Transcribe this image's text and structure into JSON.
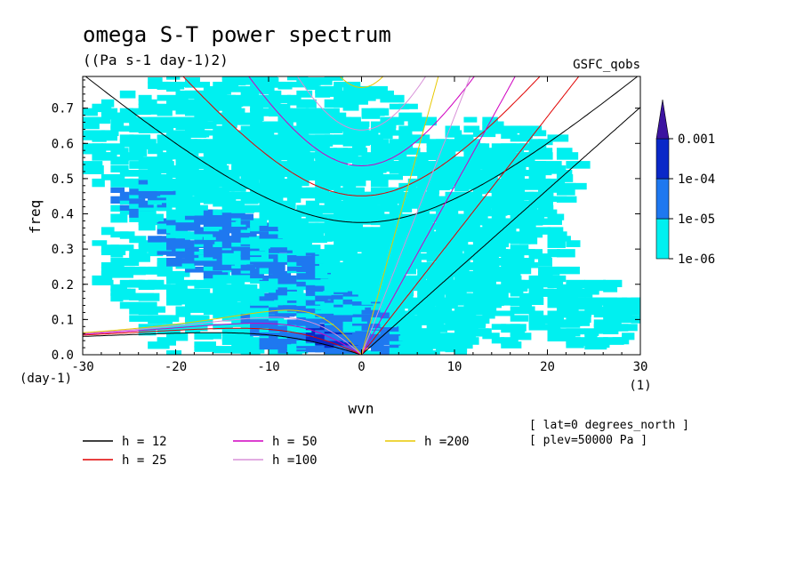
{
  "chart_data": {
    "type": "heatmap",
    "title": "omega S-T power spectrum",
    "subtitle": "((Pa s-1 day-1)2)",
    "dataset_label": "GSFC_qobs",
    "xlabel": "wvn",
    "ylabel": "freq",
    "x_unit_label": "(1)",
    "y_unit_label": "(day-1)",
    "xlim": [
      -30,
      30
    ],
    "ylim": [
      0,
      0.79
    ],
    "x_ticks": [
      -30,
      -20,
      -10,
      0,
      10,
      20,
      30
    ],
    "x_tick_labels": [
      "-30",
      "-20",
      "-10",
      "0",
      "10",
      "20",
      "30"
    ],
    "y_ticks": [
      0,
      0.1,
      0.2,
      0.3,
      0.4,
      0.5,
      0.6,
      0.7
    ],
    "y_tick_labels": [
      "0.0",
      "0.1",
      "0.2",
      "0.3",
      "0.4",
      "0.5",
      "0.6",
      "0.7"
    ],
    "colorbar": {
      "levels": [
        "1e-06",
        "1e-05",
        "1e-04",
        "0.001"
      ],
      "colors": [
        "#00f0f0",
        "#1e78f0",
        "#0a28c8",
        "#3c14a0"
      ]
    },
    "regions": [
      {
        "cls": 0,
        "cx": -3,
        "cy": 0.28,
        "rx": 26,
        "ry": 0.38
      },
      {
        "cls": 0,
        "cx": -12,
        "cy": 0.6,
        "rx": 20,
        "ry": 0.22
      },
      {
        "cls": 0,
        "cx": 6,
        "cy": 0.2,
        "rx": 10,
        "ry": 0.22
      },
      {
        "cls": 0,
        "cx": 14,
        "cy": 0.5,
        "rx": 9,
        "ry": 0.18
      },
      {
        "cls": 0,
        "cx": 25,
        "cy": 0.12,
        "rx": 6,
        "ry": 0.1
      },
      {
        "cls": 1,
        "cx": -5,
        "cy": 0.1,
        "rx": 8,
        "ry": 0.1
      },
      {
        "cls": 1,
        "cx": -16,
        "cy": 0.33,
        "rx": 7,
        "ry": 0.1
      },
      {
        "cls": 1,
        "cx": -8,
        "cy": 0.25,
        "rx": 4,
        "ry": 0.06
      },
      {
        "cls": 1,
        "cx": 1,
        "cy": 0.05,
        "rx": 3,
        "ry": 0.06
      },
      {
        "cls": 1,
        "cx": -24,
        "cy": 0.45,
        "rx": 3,
        "ry": 0.05
      },
      {
        "cls": 2,
        "cx": -4,
        "cy": 0.06,
        "rx": 2.5,
        "ry": 0.03
      }
    ],
    "series": [
      {
        "name": "h = 12",
        "color": "#000000"
      },
      {
        "name": "h = 25",
        "color": "#e00000"
      },
      {
        "name": "h = 50",
        "color": "#d000c0"
      },
      {
        "name": "h =100",
        "color": "#d890d8"
      },
      {
        "name": "h =200",
        "color": "#e8c800"
      }
    ],
    "annotations": [
      "[ lat=0 degrees_north ]",
      "[ plev=50000 Pa ]"
    ]
  }
}
